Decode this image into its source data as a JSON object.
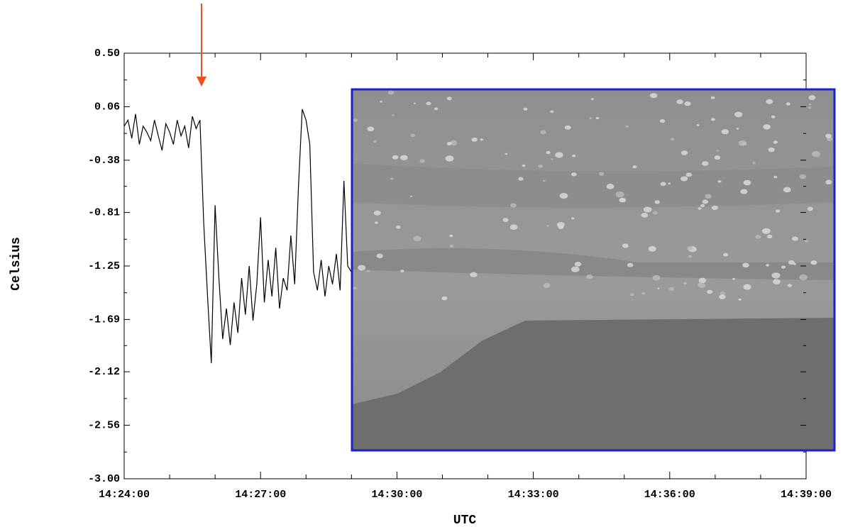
{
  "chart_data": {
    "type": "line",
    "xlabel": "UTC",
    "ylabel": "Celsius",
    "x": [
      "14:24:00",
      "14:24:05",
      "14:24:10",
      "14:24:15",
      "14:24:20",
      "14:24:25",
      "14:24:30",
      "14:24:35",
      "14:24:40",
      "14:24:45",
      "14:24:50",
      "14:24:55",
      "14:25:00",
      "14:25:05",
      "14:25:10",
      "14:25:15",
      "14:25:20",
      "14:25:25",
      "14:25:30",
      "14:25:35",
      "14:25:40",
      "14:25:45",
      "14:25:50",
      "14:25:55",
      "14:26:00",
      "14:26:05",
      "14:26:10",
      "14:26:15",
      "14:26:20",
      "14:26:25",
      "14:26:30",
      "14:26:35",
      "14:26:40",
      "14:26:45",
      "14:26:50",
      "14:26:55",
      "14:27:00",
      "14:27:05",
      "14:27:10",
      "14:27:15",
      "14:27:20",
      "14:27:25",
      "14:27:30",
      "14:27:35",
      "14:27:40",
      "14:27:45",
      "14:27:50",
      "14:27:55",
      "14:28:00",
      "14:28:05",
      "14:28:10",
      "14:28:15",
      "14:28:20",
      "14:28:25",
      "14:28:30",
      "14:28:35",
      "14:28:40",
      "14:28:45",
      "14:28:50",
      "14:28:55",
      "14:29:00"
    ],
    "series": [
      {
        "name": "Celsius",
        "color": "#000000",
        "values": [
          -0.1,
          -0.05,
          -0.2,
          0.0,
          -0.25,
          -0.1,
          -0.15,
          -0.22,
          -0.05,
          -0.18,
          -0.3,
          -0.08,
          -0.15,
          -0.25,
          -0.05,
          -0.18,
          -0.1,
          -0.28,
          -0.02,
          -0.12,
          -0.05,
          -0.9,
          -1.5,
          -2.05,
          -0.75,
          -1.35,
          -1.85,
          -1.6,
          -1.9,
          -1.55,
          -1.8,
          -1.35,
          -1.65,
          -1.25,
          -1.7,
          -1.4,
          -0.85,
          -1.55,
          -1.2,
          -1.5,
          -1.1,
          -1.6,
          -1.35,
          -1.45,
          -1.0,
          -1.4,
          -0.6,
          0.04,
          -0.05,
          -0.25,
          -1.3,
          -1.45,
          -1.2,
          -1.5,
          -1.25,
          -1.4,
          -1.15,
          -1.45,
          -0.55,
          -1.25,
          -1.3
        ]
      }
    ],
    "xlim": [
      "14:24:00",
      "14:39:00"
    ],
    "xticks": [
      "14:24:00",
      "14:27:00",
      "14:30:00",
      "14:33:00",
      "14:36:00",
      "14:39:00"
    ],
    "ylim": [
      -3.0,
      0.5
    ],
    "yticks": [
      {
        "value": 0.5,
        "label": "0.50"
      },
      0.06,
      -0.38,
      -0.81,
      -1.25,
      -1.69,
      -2.12,
      -2.56,
      {
        "value": -3.0,
        "label": "-3.00"
      }
    ],
    "grid": false
  }
}
